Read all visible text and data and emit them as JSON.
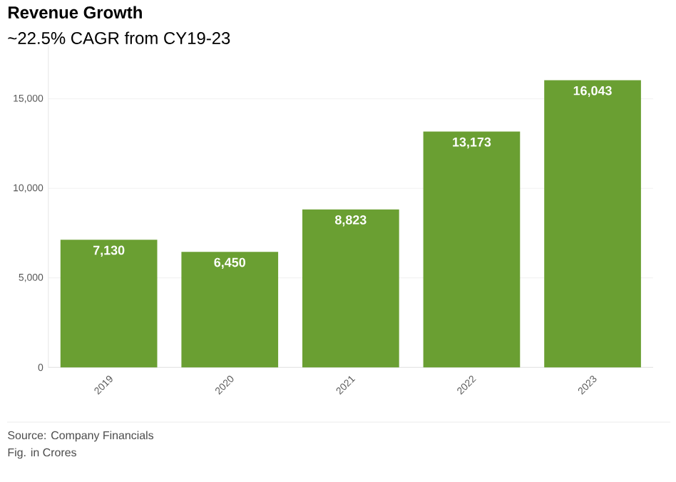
{
  "chart_data": {
    "type": "bar",
    "title": "Revenue Growth",
    "subtitle": "~22.5% CAGR from CY19-23",
    "categories": [
      "2019",
      "2020",
      "2021",
      "2022",
      "2023"
    ],
    "values": [
      7130,
      6450,
      8823,
      13173,
      16043
    ],
    "value_labels": [
      "7,130",
      "6,450",
      "8,823",
      "13,173",
      "16,043"
    ],
    "color": "#6a9f32",
    "ylim": [
      0,
      18000
    ],
    "yticks": [
      0,
      {
        "value": 5000,
        "label": "5,000"
      },
      {
        "value": 10000,
        "label": "10,000"
      },
      {
        "value": 15000,
        "label": "15,000"
      }
    ],
    "grid": "y",
    "annotations": [
      "Source: Company Financials",
      "Fig. in Crores"
    ]
  }
}
